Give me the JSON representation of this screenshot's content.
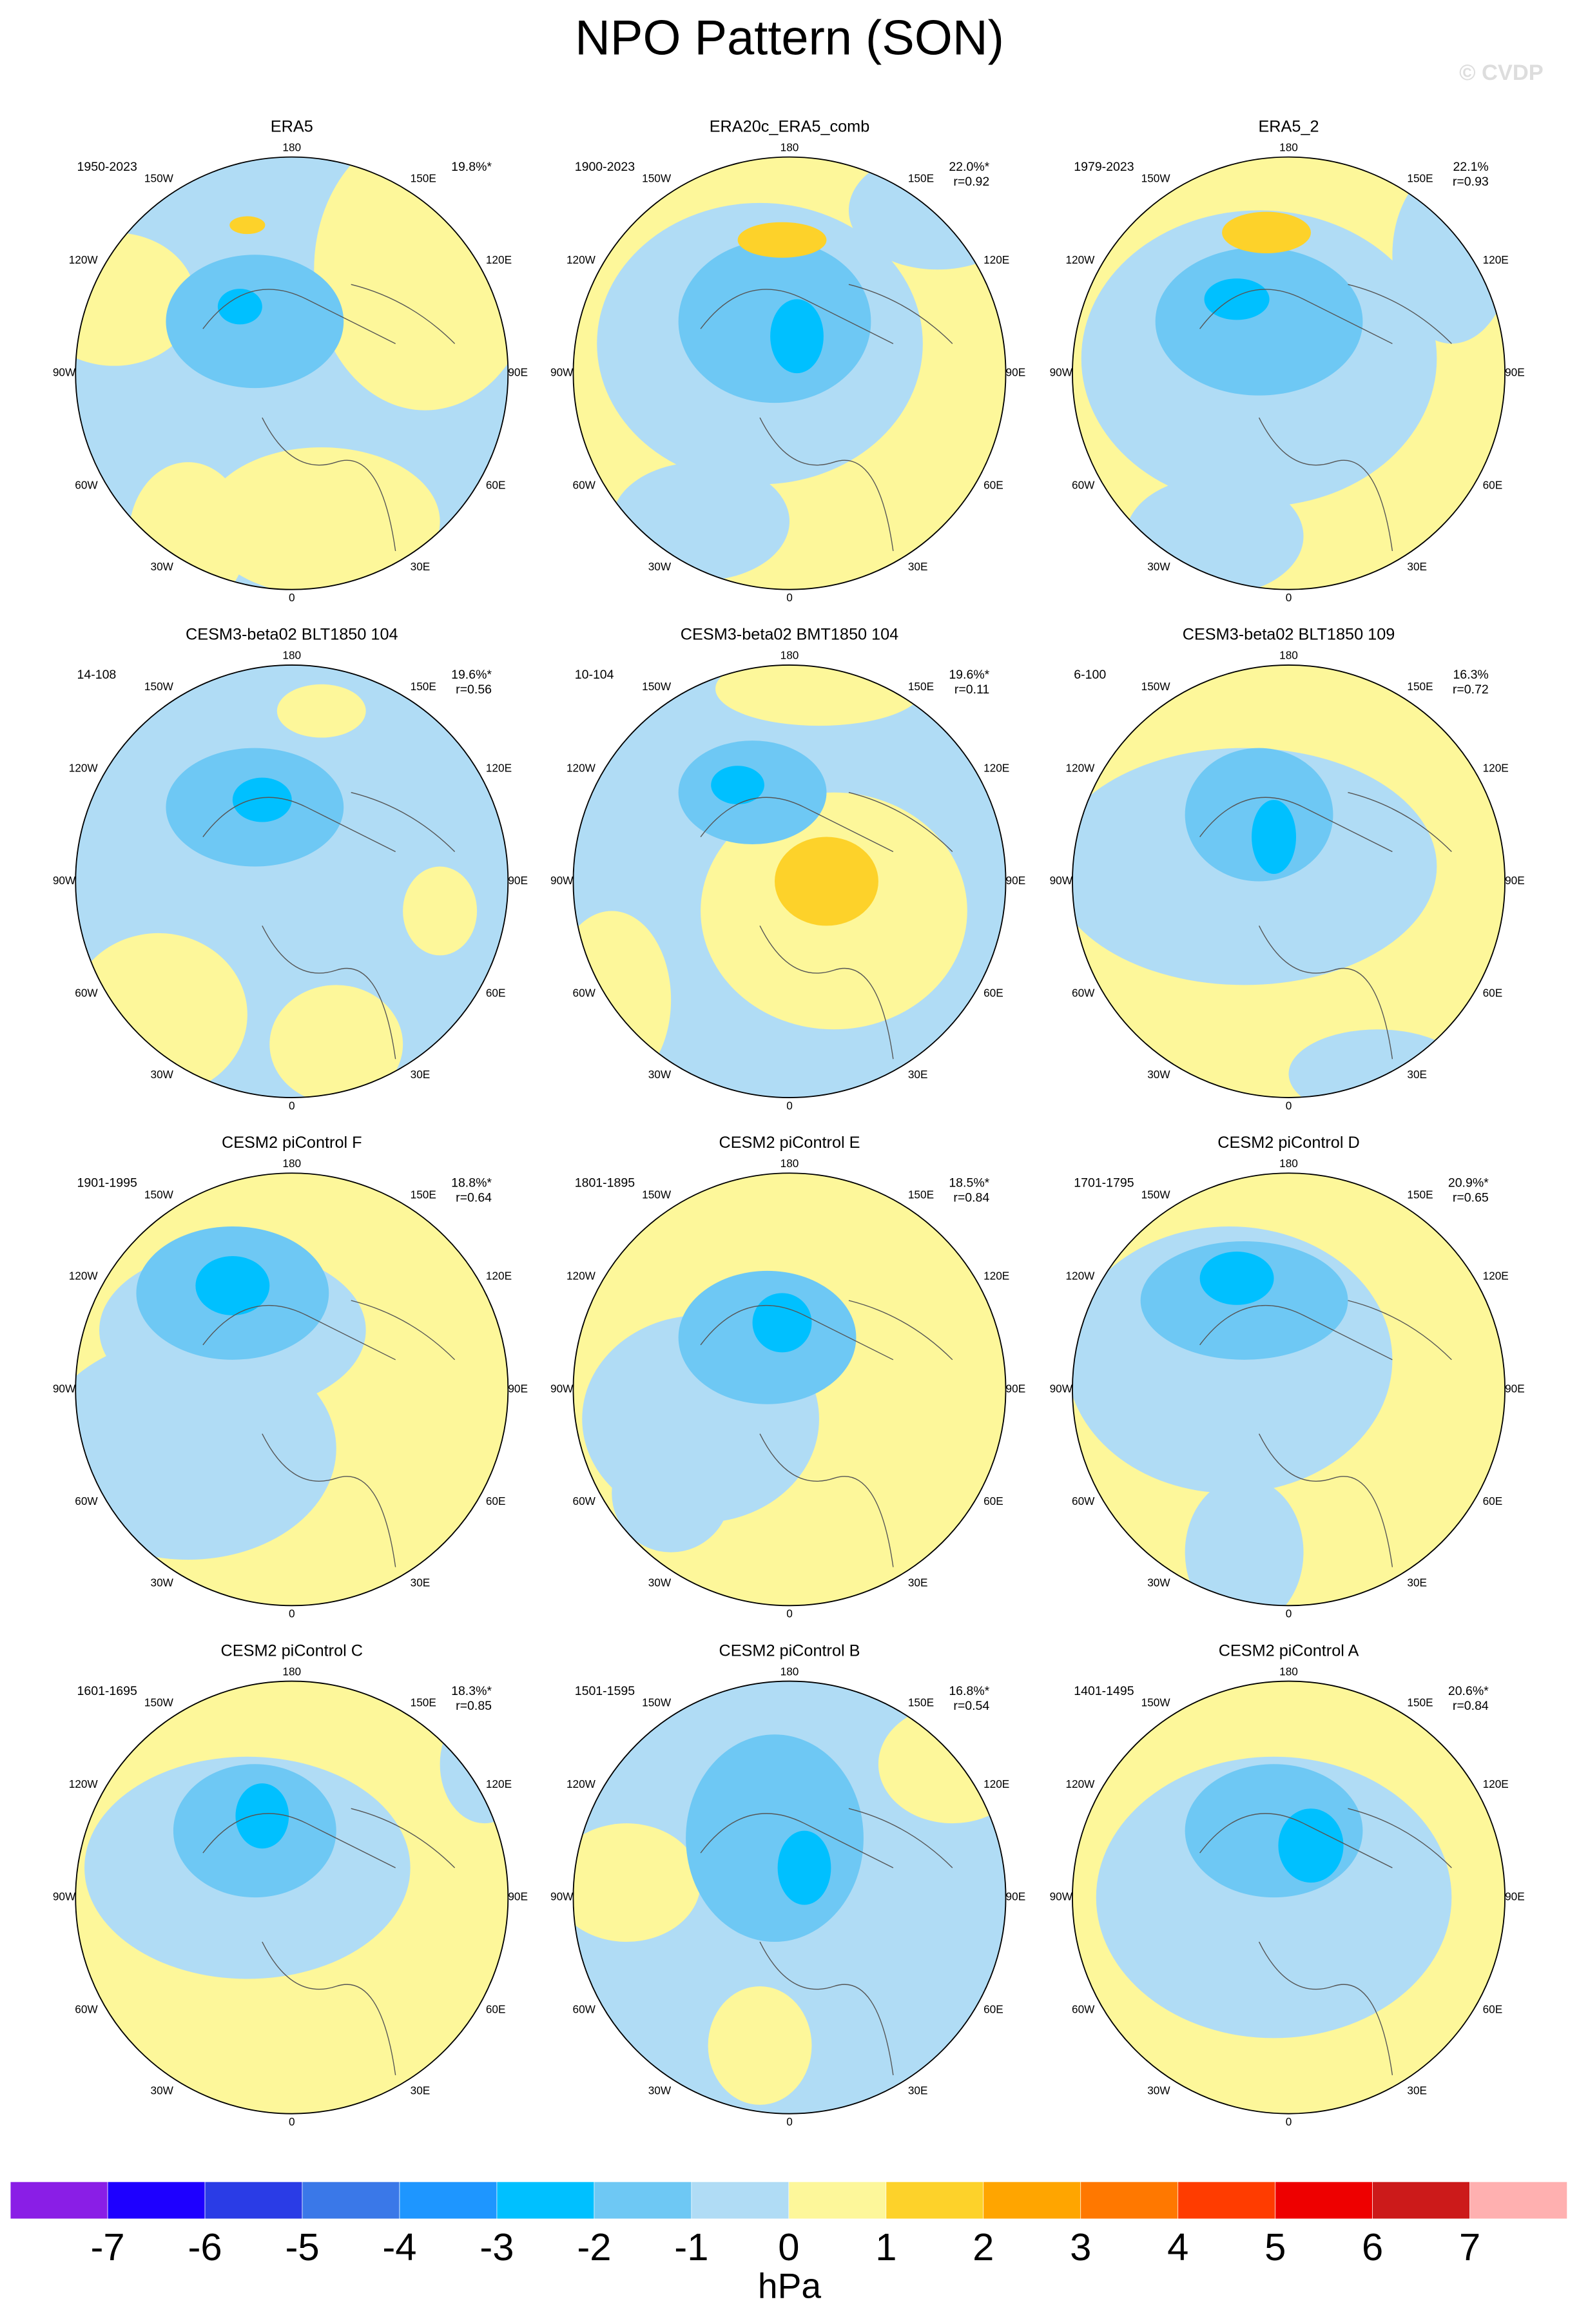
{
  "title": "NPO Pattern (SON)",
  "watermark": "© CVDP",
  "longitude_labels": [
    "180",
    "150E",
    "120E",
    "90E",
    "60E",
    "30E",
    "0",
    "30W",
    "60W",
    "90W",
    "120W",
    "150W"
  ],
  "panels": [
    {
      "title": "ERA5",
      "years": "1950-2023",
      "pct": "19.8%*"
    },
    {
      "title": "ERA20c_ERA5_comb",
      "years": "1900-2023",
      "pct": "22.0%*",
      "r": "r=0.92"
    },
    {
      "title": "ERA5_2",
      "years": "1979-2023",
      "pct": "22.1%",
      "r": "r=0.93"
    },
    {
      "title": "CESM3-beta02 BLT1850 104",
      "years": "14-108",
      "pct": "19.6%*",
      "r": "r=0.56"
    },
    {
      "title": "CESM3-beta02 BMT1850 104",
      "years": "10-104",
      "pct": "19.6%*",
      "r": "r=0.11"
    },
    {
      "title": "CESM3-beta02 BLT1850 109",
      "years": "6-100",
      "pct": "16.3%",
      "r": "r=0.72"
    },
    {
      "title": "CESM2 piControl F",
      "years": "1901-1995",
      "pct": "18.8%*",
      "r": "r=0.64"
    },
    {
      "title": "CESM2 piControl E",
      "years": "1801-1895",
      "pct": "18.5%*",
      "r": "r=0.84"
    },
    {
      "title": "CESM2 piControl D",
      "years": "1701-1795",
      "pct": "20.9%*",
      "r": "r=0.65"
    },
    {
      "title": "CESM2 piControl C",
      "years": "1601-1695",
      "pct": "18.3%*",
      "r": "r=0.85"
    },
    {
      "title": "CESM2 piControl B",
      "years": "1501-1595",
      "pct": "16.8%*",
      "r": "r=0.54"
    },
    {
      "title": "CESM2 piControl A",
      "years": "1401-1495",
      "pct": "20.6%*",
      "r": "r=0.84"
    }
  ],
  "colorbar": {
    "colors": [
      "#8a1ee6",
      "#1e00ff",
      "#2a3ce6",
      "#3a78e8",
      "#1e96ff",
      "#00c0ff",
      "#6ec8f4",
      "#b0dcf5",
      "#fdf79a",
      "#fdd22a",
      "#ffa500",
      "#ff7800",
      "#ff3c00",
      "#ee0000",
      "#cc1a1a",
      "#ffb0b0"
    ],
    "ticks": [
      -7,
      -6,
      -5,
      -4,
      -3,
      -2,
      -1,
      0,
      1,
      2,
      3,
      4,
      5,
      6,
      7
    ],
    "unit": "hPa"
  }
}
